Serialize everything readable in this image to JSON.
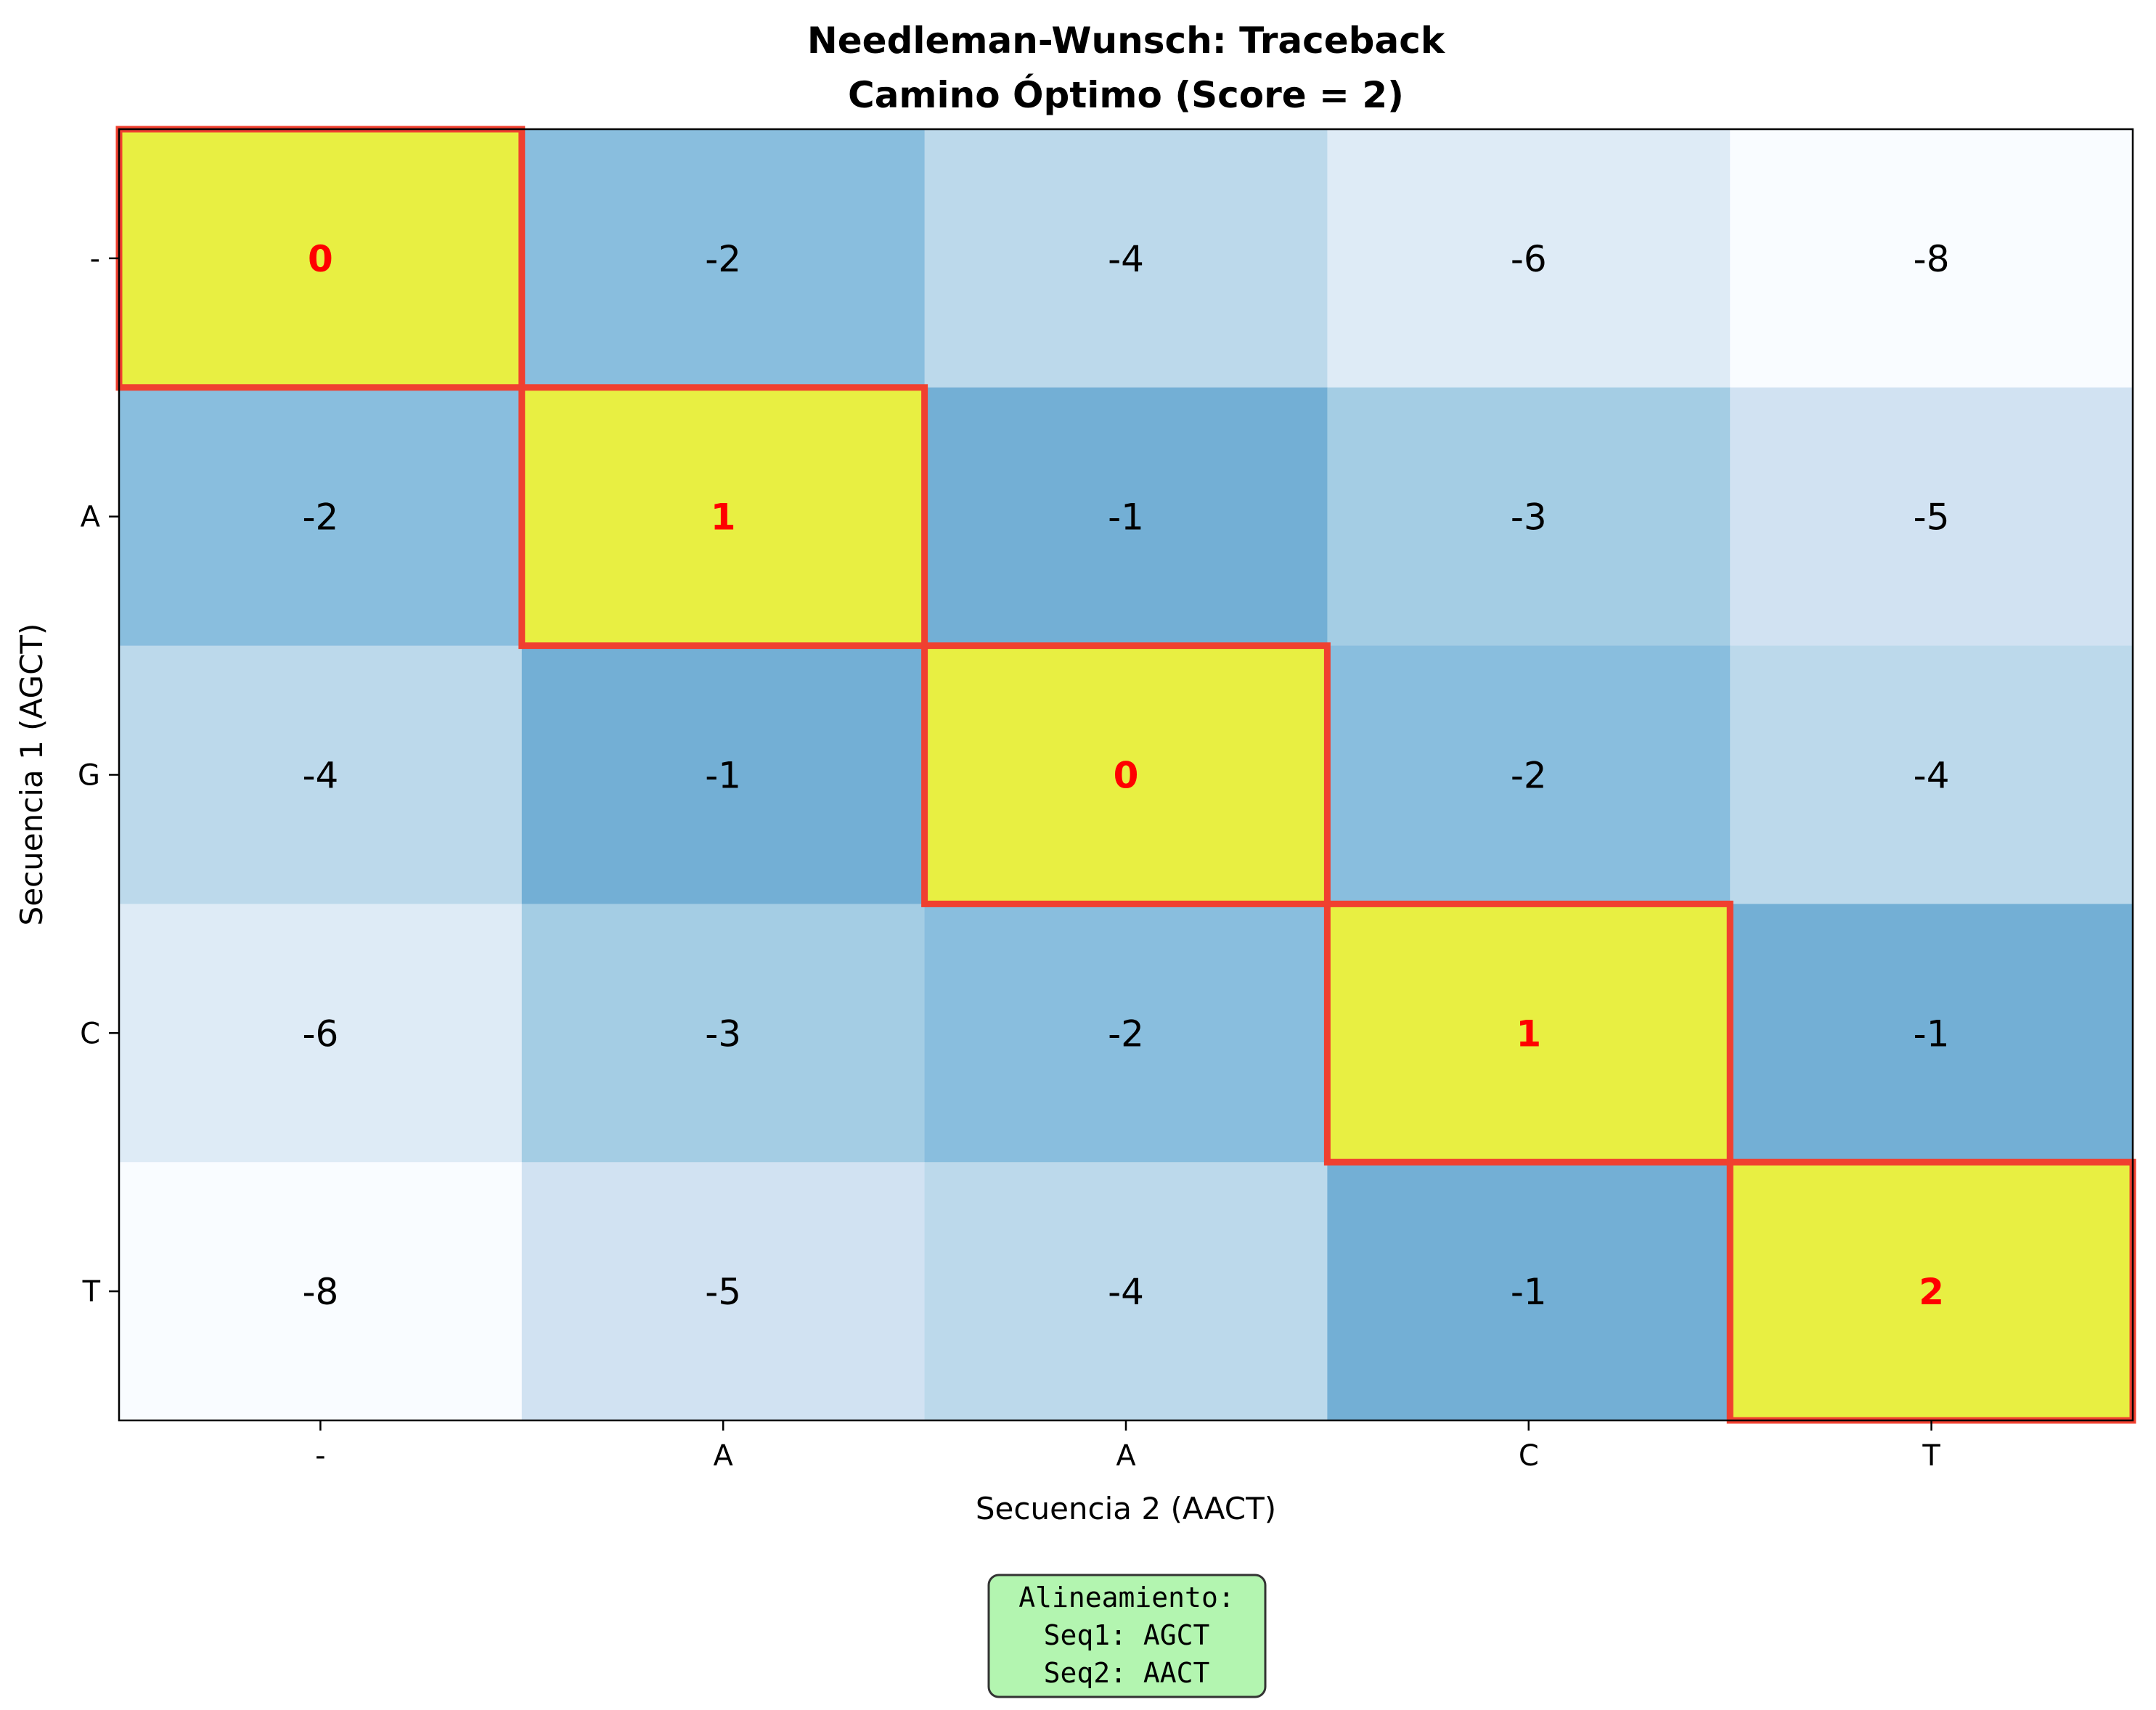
{
  "chart_data": {
    "type": "heatmap",
    "title": "Needleman-Wunsch: Traceback",
    "subtitle": "Camino Óptimo (Score = 2)",
    "xlabel": "Secuencia 2 (AACT)",
    "ylabel": "Secuencia 1 (AGCT)",
    "x_categories": [
      "-",
      "A",
      "A",
      "C",
      "T"
    ],
    "y_categories": [
      "-",
      "A",
      "G",
      "C",
      "T"
    ],
    "values": [
      [
        0,
        -2,
        -4,
        -6,
        -8
      ],
      [
        -2,
        1,
        -1,
        -3,
        -5
      ],
      [
        -4,
        -1,
        0,
        -2,
        -4
      ],
      [
        -6,
        -3,
        -2,
        1,
        -1
      ],
      [
        -8,
        -5,
        -4,
        -1,
        2
      ]
    ],
    "path": [
      [
        0,
        0
      ],
      [
        1,
        1
      ],
      [
        2,
        2
      ],
      [
        3,
        3
      ],
      [
        4,
        4
      ]
    ],
    "annotation": {
      "title": "Alineamiento:",
      "lines": [
        "Seq1: AGCT",
        "Seq2: AACT"
      ]
    },
    "colors": {
      "path_fill": "#e8ef42",
      "path_border": "#f04030",
      "path_text": "#ff0000",
      "annotation_fill": "#b3f5b0"
    }
  }
}
